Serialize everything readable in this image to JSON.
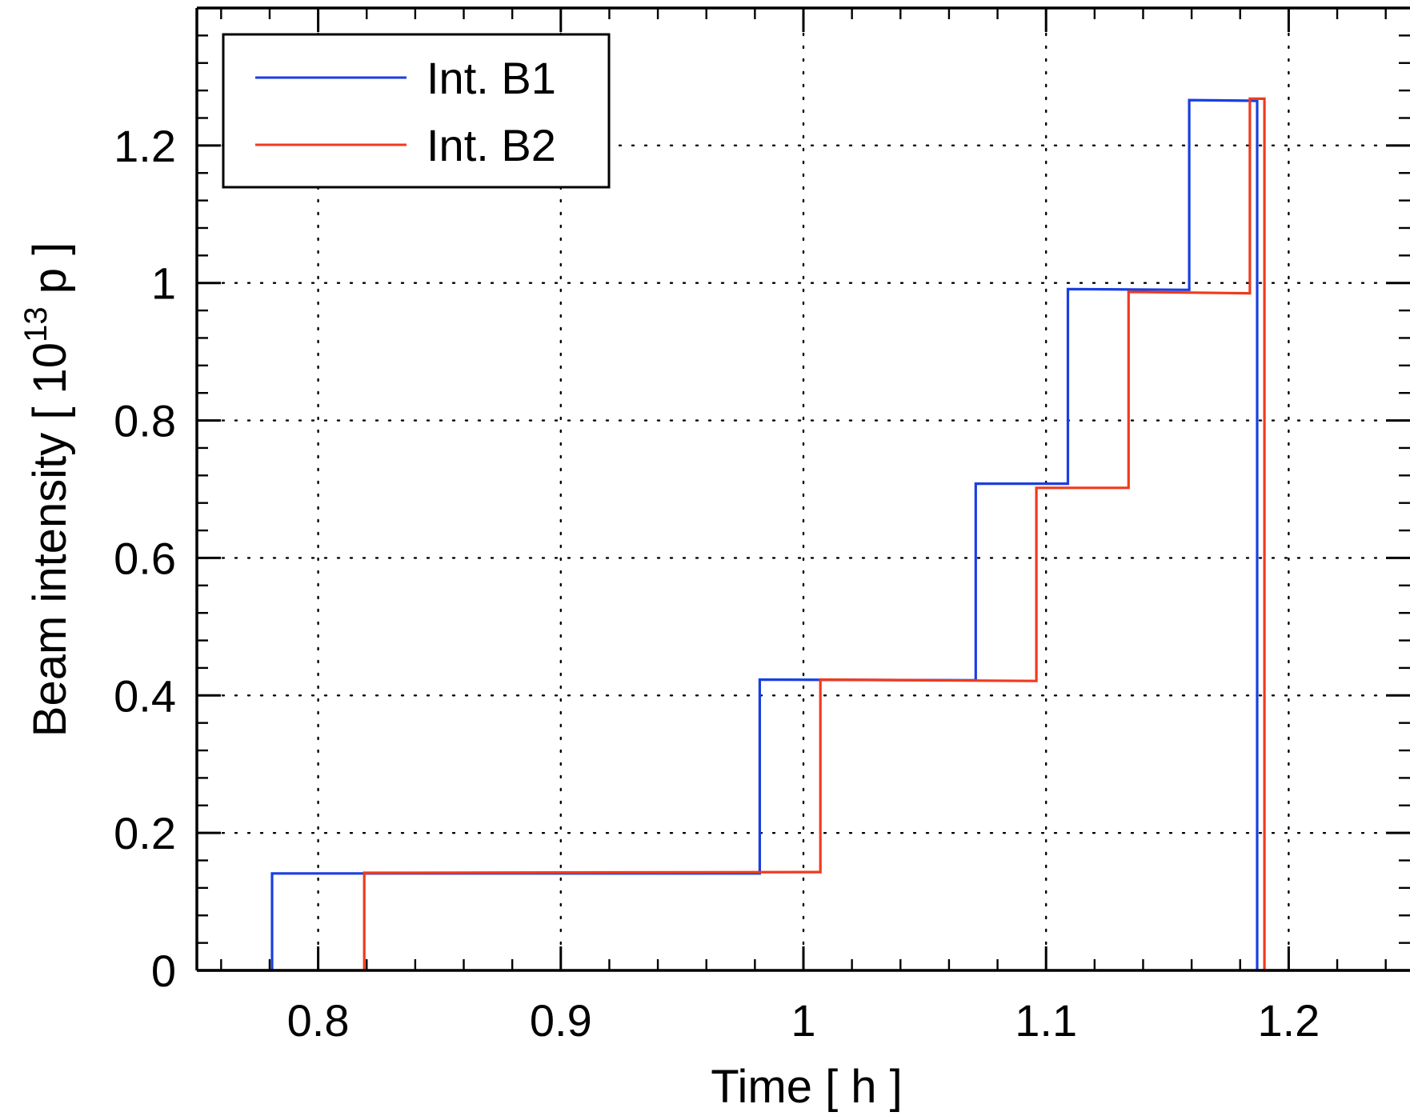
{
  "chart_data": {
    "type": "line",
    "title": "",
    "xlabel": "Time [ h ]",
    "ylabel": {
      "prefix": "Beam intensity [ 10",
      "superscript": "13",
      "suffix": " p ]"
    },
    "xlim": [
      0.75,
      1.25
    ],
    "ylim": [
      0,
      1.4
    ],
    "x_ticks": [
      0.8,
      0.9,
      1.0,
      1.1,
      1.2
    ],
    "x_tick_labels": [
      "0.8",
      "0.9",
      "1",
      "1.1",
      "1.2"
    ],
    "y_ticks": [
      0,
      0.2,
      0.4,
      0.6,
      0.8,
      1.0,
      1.2
    ],
    "y_tick_labels": [
      "0",
      "0.2",
      "0.4",
      "0.6",
      "0.8",
      "1",
      "1.2"
    ],
    "grid": true,
    "grid_style": "dotted",
    "legend": "top-left",
    "series": [
      {
        "name": "Int. B1",
        "color": "#1a3fe0",
        "points": [
          [
            0.75,
            0.0
          ],
          [
            0.781,
            0.0
          ],
          [
            0.781,
            0.141
          ],
          [
            0.982,
            0.141
          ],
          [
            0.982,
            0.423
          ],
          [
            1.071,
            0.422
          ],
          [
            1.071,
            0.708
          ],
          [
            1.109,
            0.708
          ],
          [
            1.109,
            0.991
          ],
          [
            1.159,
            0.99
          ],
          [
            1.159,
            1.266
          ],
          [
            1.187,
            1.265
          ],
          [
            1.187,
            0.0
          ],
          [
            1.25,
            0.0
          ]
        ]
      },
      {
        "name": "Int. B2",
        "color": "#f03a1e",
        "points": [
          [
            0.75,
            0.0
          ],
          [
            0.819,
            0.0
          ],
          [
            0.819,
            0.142
          ],
          [
            1.007,
            0.143
          ],
          [
            1.007,
            0.423
          ],
          [
            1.096,
            0.421
          ],
          [
            1.096,
            0.702
          ],
          [
            1.134,
            0.702
          ],
          [
            1.134,
            0.987
          ],
          [
            1.184,
            0.985
          ],
          [
            1.184,
            1.268
          ],
          [
            1.19,
            1.268
          ],
          [
            1.19,
            0.0
          ],
          [
            1.25,
            0.0
          ]
        ]
      }
    ]
  }
}
